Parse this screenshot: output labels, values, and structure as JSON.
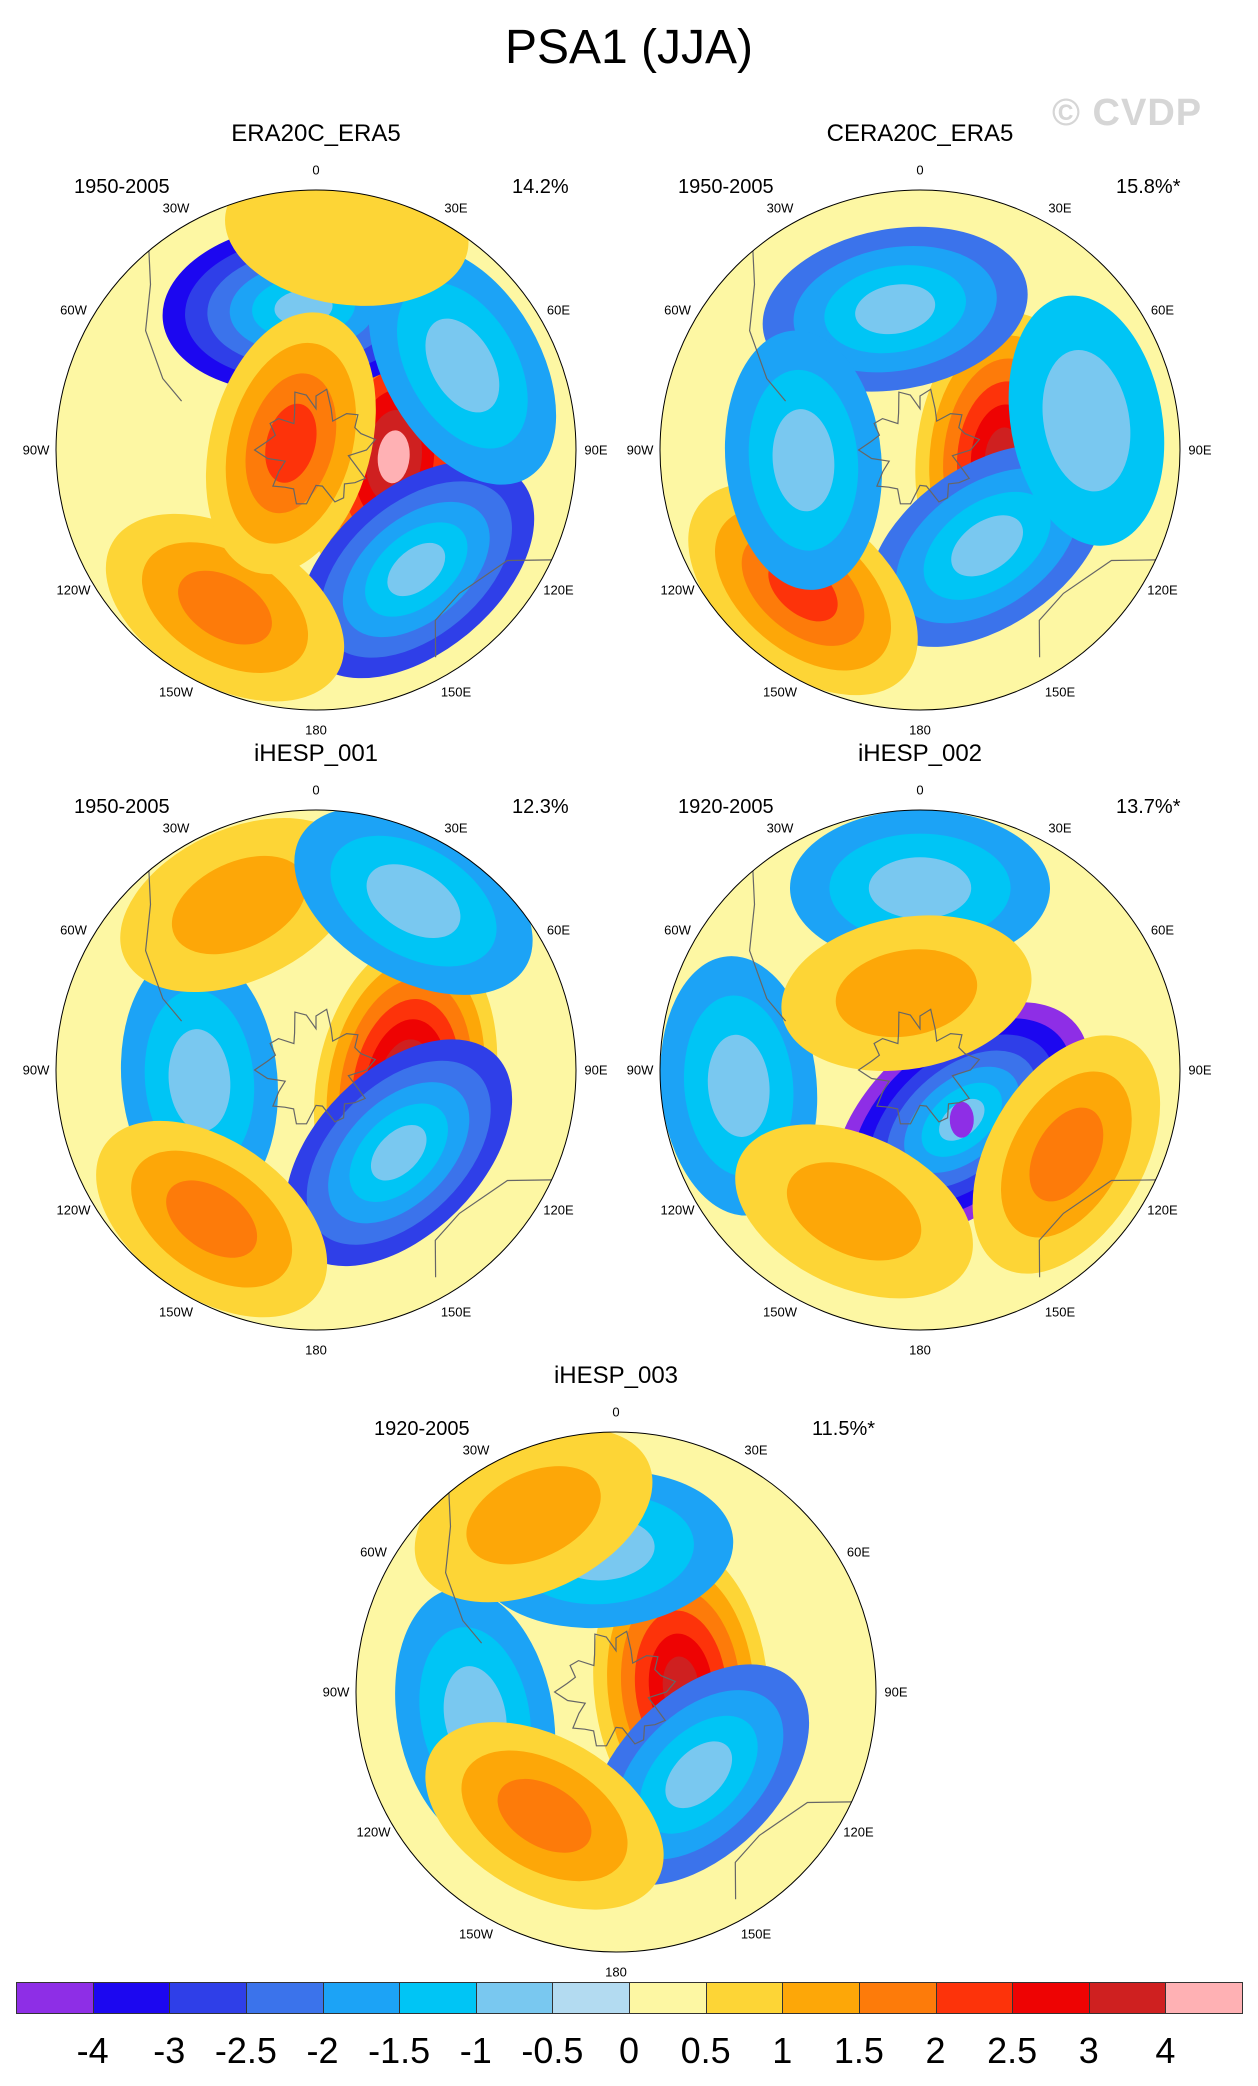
{
  "title": "PSA1 (JJA)",
  "watermark": "© CVDP",
  "longitude_labels": [
    "0",
    "30E",
    "60E",
    "90E",
    "120E",
    "150E",
    "180",
    "150W",
    "120W",
    "90W",
    "60W",
    "30W"
  ],
  "panels": [
    {
      "name": "ERA20C_ERA5",
      "period": "1950-2005",
      "variance": "14.2%",
      "features": [
        {
          "lon": 95,
          "rad": 0.3,
          "value": 4
        },
        {
          "lon": 140,
          "rad": 0.6,
          "value": -2.5
        },
        {
          "lon": -5,
          "rad": 0.55,
          "value": -3
        },
        {
          "lon": 60,
          "rad": 0.65,
          "value": -1.5
        },
        {
          "lon": -150,
          "rad": 0.7,
          "value": 1.5
        },
        {
          "lon": 8,
          "rad": 0.85,
          "value": 0.5
        },
        {
          "lon": -75,
          "rad": 0.1,
          "value": 2
        }
      ]
    },
    {
      "name": "CERA20C_ERA5",
      "period": "1950-2005",
      "variance": "15.8%*",
      "features": [
        {
          "lon": 95,
          "rad": 0.32,
          "value": 3.5
        },
        {
          "lon": 145,
          "rad": 0.45,
          "value": -2
        },
        {
          "lon": -10,
          "rad": 0.55,
          "value": -2
        },
        {
          "lon": 80,
          "rad": 0.65,
          "value": -1
        },
        {
          "lon": -140,
          "rad": 0.7,
          "value": 2
        },
        {
          "lon": -95,
          "rad": 0.45,
          "value": -1.5
        }
      ]
    },
    {
      "name": "iHESP_001",
      "period": "1950-2005",
      "variance": "12.3%",
      "features": [
        {
          "lon": 100,
          "rad": 0.35,
          "value": 4
        },
        {
          "lon": 135,
          "rad": 0.45,
          "value": -2.5
        },
        {
          "lon": -95,
          "rad": 0.45,
          "value": -1.5
        },
        {
          "lon": -25,
          "rad": 0.7,
          "value": 1
        },
        {
          "lon": -145,
          "rad": 0.7,
          "value": 1.5
        },
        {
          "lon": 30,
          "rad": 0.75,
          "value": -1.5
        }
      ]
    },
    {
      "name": "iHESP_002",
      "period": "1920-2005",
      "variance": "13.7%*",
      "features": [
        {
          "lon": 140,
          "rad": 0.25,
          "value": -4
        },
        {
          "lon": 120,
          "rad": 0.65,
          "value": 1.5
        },
        {
          "lon": 0,
          "rad": 0.7,
          "value": -1.5
        },
        {
          "lon": -95,
          "rad": 0.7,
          "value": -1.5
        },
        {
          "lon": -155,
          "rad": 0.6,
          "value": 1
        },
        {
          "lon": -10,
          "rad": 0.3,
          "value": 1
        }
      ]
    },
    {
      "name": "iHESP_003",
      "period": "1920-2005",
      "variance": "11.5%*",
      "features": [
        {
          "lon": 85,
          "rad": 0.25,
          "value": 3.5
        },
        {
          "lon": 135,
          "rad": 0.45,
          "value": -2
        },
        {
          "lon": -5,
          "rad": 0.55,
          "value": -1.5
        },
        {
          "lon": -100,
          "rad": 0.55,
          "value": -1.5
        },
        {
          "lon": -150,
          "rad": 0.55,
          "value": 1.5
        },
        {
          "lon": -25,
          "rad": 0.75,
          "value": 1
        }
      ]
    }
  ],
  "colorbar": {
    "colors": [
      "#8e2ee6",
      "#1c07f0",
      "#2f3fe8",
      "#3b73eb",
      "#1ca3f6",
      "#00c5f5",
      "#79c8f0",
      "#b3dbf1",
      "#fdf7a3",
      "#fdd536",
      "#fda708",
      "#fd7b0a",
      "#fd330a",
      "#ee0303",
      "#cf2020",
      "#ffb1b4"
    ],
    "labels": [
      "-4",
      "-3",
      "-2.5",
      "-2",
      "-1.5",
      "-1",
      "-0.5",
      "0",
      "0.5",
      "1",
      "1.5",
      "2",
      "2.5",
      "3",
      "4"
    ]
  }
}
